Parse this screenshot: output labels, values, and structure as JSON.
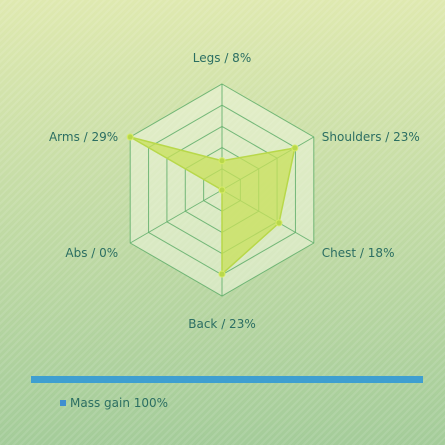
{
  "chart_data": {
    "type": "radar",
    "axes": [
      "Legs",
      "Shoulders",
      "Chest",
      "Back",
      "Abs",
      "Arms"
    ],
    "axis_labels": [
      "Legs / 8%",
      "Shoulders / 23%",
      "Chest / 18%",
      "Back / 23%",
      "Abs / 0%",
      "Arms / 29%"
    ],
    "rings": 5,
    "series": [
      {
        "name": "Mass gain 100%",
        "values": [
          8,
          23,
          18,
          23,
          0,
          29
        ]
      }
    ],
    "range": [
      0,
      29
    ],
    "legend_position": "bottom-left"
  },
  "colors": {
    "series_fill": "#c8e05a",
    "series_stroke": "#b8d84a",
    "grid": "#5fae6a",
    "web_fill": "#eef5dc",
    "label_text": "#2b6e62",
    "divider": "#3f9fd0",
    "legend_swatch": "#3f8fd0"
  }
}
